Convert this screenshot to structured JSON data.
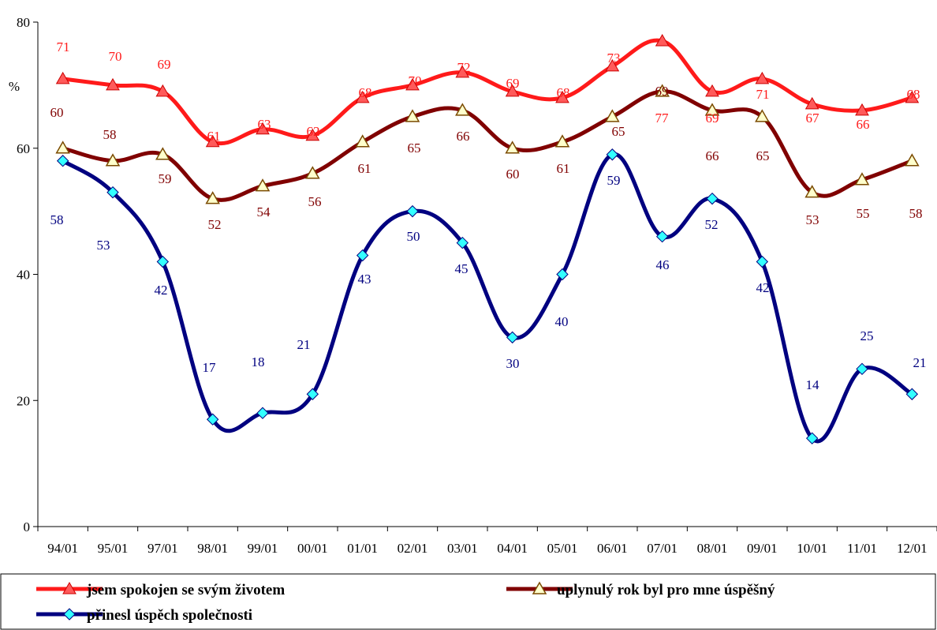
{
  "chart_data": {
    "type": "line",
    "title": "",
    "xlabel": "",
    "ylabel": "%",
    "ylim": [
      0,
      80
    ],
    "yticks": [
      0,
      20,
      40,
      60,
      80
    ],
    "grid": false,
    "legend_position": "bottom",
    "categories": [
      "94/01",
      "95/01",
      "97/01",
      "98/01",
      "99/01",
      "00/01",
      "01/01",
      "02/01",
      "03/01",
      "04/01",
      "05/01",
      "06/01",
      "07/01",
      "08/01",
      "09/01",
      "10/01",
      "11/01",
      "12/01"
    ],
    "series": [
      {
        "name": "jsem spokojen se svým životem",
        "color": "#ff1a1a",
        "label_color": "#ff1a1a",
        "marker": "triangle-filled",
        "values": [
          71,
          70,
          69,
          61,
          63,
          62,
          68,
          70,
          72,
          69,
          68,
          73,
          77,
          69,
          71,
          67,
          66,
          68
        ]
      },
      {
        "name": "uplynulý rok byl pro mne úspěšný",
        "color": "#800000",
        "label_color": "#800000",
        "marker": "triangle-open",
        "values": [
          60,
          58,
          59,
          52,
          54,
          56,
          61,
          65,
          66,
          60,
          61,
          65,
          69,
          66,
          65,
          53,
          55,
          58
        ]
      },
      {
        "name": "přinesl úspěch společnosti",
        "color": "#000080",
        "label_color": "#000080",
        "marker": "diamond-cyan",
        "values": [
          58,
          53,
          42,
          17,
          18,
          21,
          43,
          50,
          45,
          30,
          40,
          59,
          46,
          52,
          42,
          14,
          25,
          21
        ]
      }
    ]
  }
}
